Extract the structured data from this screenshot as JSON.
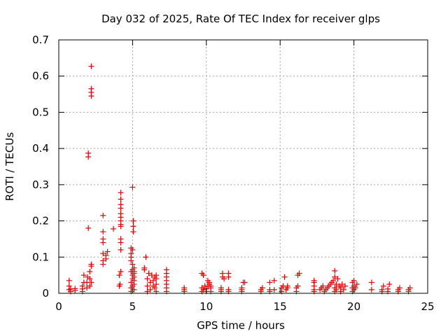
{
  "chart_data": {
    "type": "scatter",
    "title": "Day 032 of 2025, Rate Of TEC Index for receiver glps",
    "xlabel": "GPS time / hours",
    "ylabel": "ROTI / TECUs",
    "xlim": [
      0,
      25
    ],
    "ylim": [
      0,
      0.7
    ],
    "x_ticks": [
      0,
      5,
      10,
      15,
      20,
      25
    ],
    "y_ticks": [
      0,
      0.1,
      0.2,
      0.3,
      0.4,
      0.5,
      0.6,
      0.7
    ],
    "x_tick_labels": [
      "0",
      "5",
      "10",
      "15",
      "20",
      "25"
    ],
    "y_tick_labels": [
      "0",
      "0.1",
      "0.2",
      "0.3",
      "0.4",
      "0.5",
      "0.6",
      "0.7"
    ],
    "grid": true,
    "marker": "+",
    "color": "#e00000",
    "series": [
      {
        "points": [
          [
            0.7,
            0.035
          ],
          [
            0.7,
            0.02
          ],
          [
            0.7,
            0.01
          ],
          [
            0.8,
            0.005
          ],
          [
            0.8,
            0.012
          ],
          [
            1.1,
            0.008
          ],
          [
            1.1,
            0.013
          ],
          [
            1.6,
            0.005
          ],
          [
            1.6,
            0.012
          ],
          [
            1.6,
            0.02
          ],
          [
            1.7,
            0.03
          ],
          [
            1.7,
            0.05
          ],
          [
            1.9,
            0.015
          ],
          [
            1.9,
            0.03
          ],
          [
            1.95,
            0.045
          ],
          [
            2.0,
            0.18
          ],
          [
            2.0,
            0.377
          ],
          [
            2.0,
            0.387
          ],
          [
            2.1,
            0.02
          ],
          [
            2.1,
            0.04
          ],
          [
            2.1,
            0.06
          ],
          [
            2.2,
            0.075
          ],
          [
            2.2,
            0.08
          ],
          [
            2.2,
            0.03
          ],
          [
            2.2,
            0.545
          ],
          [
            2.2,
            0.555
          ],
          [
            2.2,
            0.565
          ],
          [
            2.2,
            0.627
          ],
          [
            3.0,
            0.08
          ],
          [
            3.0,
            0.09
          ],
          [
            3.0,
            0.11
          ],
          [
            3.0,
            0.14
          ],
          [
            3.0,
            0.15
          ],
          [
            3.0,
            0.17
          ],
          [
            3.0,
            0.215
          ],
          [
            3.2,
            0.095
          ],
          [
            3.2,
            0.105
          ],
          [
            3.3,
            0.115
          ],
          [
            3.7,
            0.178
          ],
          [
            4.1,
            0.02
          ],
          [
            4.1,
            0.05
          ],
          [
            4.15,
            0.025
          ],
          [
            4.2,
            0.06
          ],
          [
            4.2,
            0.12
          ],
          [
            4.2,
            0.14
          ],
          [
            4.2,
            0.15
          ],
          [
            4.2,
            0.185
          ],
          [
            4.2,
            0.19
          ],
          [
            4.2,
            0.2
          ],
          [
            4.2,
            0.21
          ],
          [
            4.2,
            0.22
          ],
          [
            4.2,
            0.235
          ],
          [
            4.2,
            0.245
          ],
          [
            4.2,
            0.26
          ],
          [
            4.2,
            0.278
          ],
          [
            4.9,
            0.005
          ],
          [
            4.9,
            0.015
          ],
          [
            4.9,
            0.03
          ],
          [
            4.9,
            0.06
          ],
          [
            4.9,
            0.09
          ],
          [
            4.9,
            0.1
          ],
          [
            4.9,
            0.11
          ],
          [
            4.9,
            0.125
          ],
          [
            5.0,
            0.02
          ],
          [
            5.0,
            0.04
          ],
          [
            5.0,
            0.05
          ],
          [
            5.0,
            0.065
          ],
          [
            5.0,
            0.08
          ],
          [
            5.0,
            0.12
          ],
          [
            5.0,
            0.293
          ],
          [
            5.05,
            0.17
          ],
          [
            5.05,
            0.185
          ],
          [
            5.05,
            0.2
          ],
          [
            5.1,
            0.01
          ],
          [
            5.1,
            0.025
          ],
          [
            5.1,
            0.035
          ],
          [
            5.1,
            0.045
          ],
          [
            5.1,
            0.055
          ],
          [
            5.1,
            0.06
          ],
          [
            5.1,
            0.07
          ],
          [
            5.8,
            0.065
          ],
          [
            5.8,
            0.07
          ],
          [
            5.9,
            0.1
          ],
          [
            6.0,
            0.005
          ],
          [
            6.0,
            0.02
          ],
          [
            6.0,
            0.04
          ],
          [
            6.1,
            0.055
          ],
          [
            6.2,
            0.03
          ],
          [
            6.2,
            0.01
          ],
          [
            6.3,
            0.05
          ],
          [
            6.4,
            0.02
          ],
          [
            6.4,
            0.035
          ],
          [
            6.5,
            0.015
          ],
          [
            6.5,
            0.045
          ],
          [
            6.6,
            0.005
          ],
          [
            6.6,
            0.025
          ],
          [
            6.6,
            0.04
          ],
          [
            6.6,
            0.05
          ],
          [
            7.3,
            0.005
          ],
          [
            7.3,
            0.015
          ],
          [
            7.3,
            0.025
          ],
          [
            7.3,
            0.035
          ],
          [
            7.3,
            0.045
          ],
          [
            7.3,
            0.055
          ],
          [
            7.3,
            0.065
          ],
          [
            8.5,
            0.005
          ],
          [
            8.5,
            0.01
          ],
          [
            8.5,
            0.015
          ],
          [
            9.7,
            0.005
          ],
          [
            9.7,
            0.015
          ],
          [
            9.7,
            0.055
          ],
          [
            9.8,
            0.01
          ],
          [
            9.8,
            0.05
          ],
          [
            9.9,
            0.02
          ],
          [
            10.0,
            0.005
          ],
          [
            10.0,
            0.012
          ],
          [
            10.1,
            0.02
          ],
          [
            10.1,
            0.035
          ],
          [
            10.2,
            0.025
          ],
          [
            10.2,
            0.03
          ],
          [
            10.3,
            0.005
          ],
          [
            10.3,
            0.015
          ],
          [
            10.3,
            0.02
          ],
          [
            11.0,
            0.005
          ],
          [
            11.0,
            0.01
          ],
          [
            11.0,
            0.015
          ],
          [
            11.1,
            0.045
          ],
          [
            11.1,
            0.055
          ],
          [
            11.2,
            0.04
          ],
          [
            11.5,
            0.005
          ],
          [
            11.5,
            0.01
          ],
          [
            11.5,
            0.045
          ],
          [
            11.5,
            0.055
          ],
          [
            12.4,
            0.005
          ],
          [
            12.4,
            0.01
          ],
          [
            12.4,
            0.015
          ],
          [
            12.5,
            0.03
          ],
          [
            12.6,
            0.03
          ],
          [
            13.7,
            0.005
          ],
          [
            13.7,
            0.01
          ],
          [
            13.8,
            0.015
          ],
          [
            14.3,
            0.005
          ],
          [
            14.3,
            0.01
          ],
          [
            14.3,
            0.03
          ],
          [
            14.6,
            0.035
          ],
          [
            14.6,
            0.01
          ],
          [
            15.1,
            0.005
          ],
          [
            15.1,
            0.015
          ],
          [
            15.2,
            0.02
          ],
          [
            15.3,
            0.045
          ],
          [
            15.4,
            0.01
          ],
          [
            15.5,
            0.015
          ],
          [
            15.5,
            0.02
          ],
          [
            16.1,
            0.005
          ],
          [
            16.1,
            0.015
          ],
          [
            16.2,
            0.02
          ],
          [
            16.2,
            0.05
          ],
          [
            16.3,
            0.055
          ],
          [
            17.3,
            0.005
          ],
          [
            17.3,
            0.01
          ],
          [
            17.3,
            0.02
          ],
          [
            17.3,
            0.03
          ],
          [
            17.3,
            0.035
          ],
          [
            17.7,
            0.01
          ],
          [
            17.8,
            0.015
          ],
          [
            17.9,
            0.02
          ],
          [
            18.0,
            0.005
          ],
          [
            18.1,
            0.01
          ],
          [
            18.2,
            0.015
          ],
          [
            18.3,
            0.02
          ],
          [
            18.4,
            0.025
          ],
          [
            18.5,
            0.03
          ],
          [
            18.6,
            0.035
          ],
          [
            18.7,
            0.005
          ],
          [
            18.7,
            0.015
          ],
          [
            18.7,
            0.045
          ],
          [
            18.7,
            0.062
          ],
          [
            18.8,
            0.01
          ],
          [
            18.8,
            0.025
          ],
          [
            18.9,
            0.04
          ],
          [
            19.0,
            0.02
          ],
          [
            19.1,
            0.005
          ],
          [
            19.1,
            0.015
          ],
          [
            19.2,
            0.025
          ],
          [
            19.3,
            0.01
          ],
          [
            19.4,
            0.02
          ],
          [
            19.9,
            0.005
          ],
          [
            19.9,
            0.015
          ],
          [
            19.9,
            0.03
          ],
          [
            20.0,
            0.01
          ],
          [
            20.0,
            0.02
          ],
          [
            20.0,
            0.035
          ],
          [
            20.1,
            0.015
          ],
          [
            20.2,
            0.025
          ],
          [
            21.2,
            0.01
          ],
          [
            21.2,
            0.03
          ],
          [
            21.9,
            0.005
          ],
          [
            21.9,
            0.01
          ],
          [
            22.0,
            0.02
          ],
          [
            22.3,
            0.005
          ],
          [
            22.3,
            0.012
          ],
          [
            22.4,
            0.025
          ],
          [
            23.0,
            0.005
          ],
          [
            23.0,
            0.01
          ],
          [
            23.1,
            0.015
          ],
          [
            23.7,
            0.005
          ],
          [
            23.7,
            0.01
          ],
          [
            23.8,
            0.015
          ]
        ]
      }
    ]
  }
}
